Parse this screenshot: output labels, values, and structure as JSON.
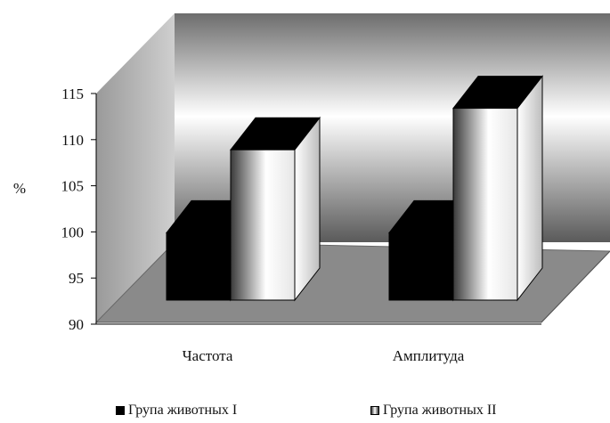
{
  "chart_data": {
    "type": "bar",
    "categories": [
      "Частота",
      "Амплитуда"
    ],
    "series": [
      {
        "name": "Група животных I",
        "values": [
          102,
          102
        ],
        "color": "#000000"
      },
      {
        "name": "Група животных II",
        "values": [
          111,
          115.5
        ],
        "color": "#ffffff"
      }
    ],
    "ylabel": "%",
    "ylim": [
      90,
      115
    ],
    "yticks": [
      90,
      95,
      100,
      105,
      110,
      115
    ],
    "grid": false,
    "legend_position": "bottom",
    "style": "3d"
  }
}
